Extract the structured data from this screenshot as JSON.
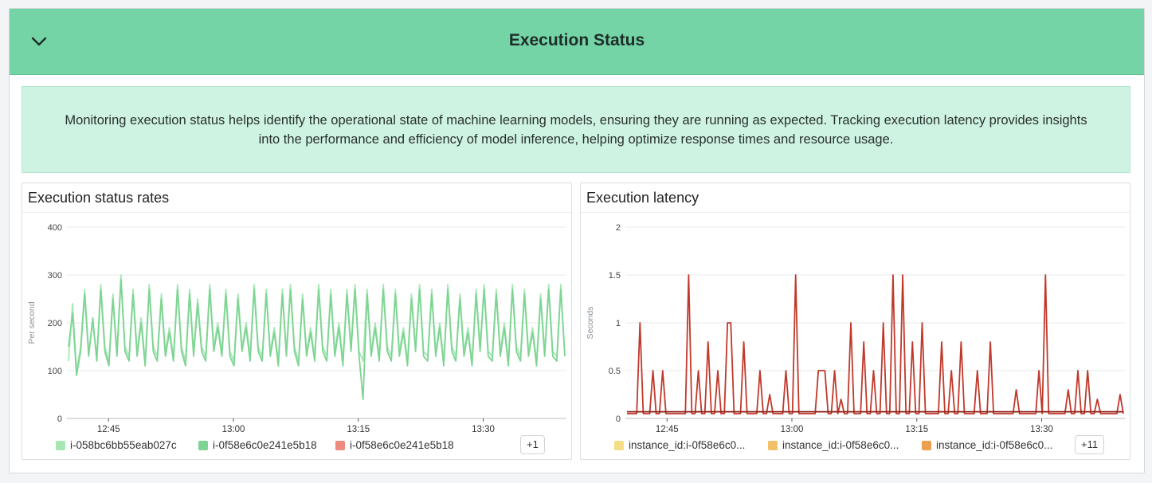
{
  "header": {
    "title": "Execution Status",
    "toggle_icon": "chevron-down-icon"
  },
  "description": "Monitoring execution status helps identify the operational state of machine learning models, ensuring they are running as expected. Tracking execution latency provides insights into the performance and efficiency of model inference, helping optimize response times and resource usage.",
  "widgets": [
    {
      "title": "Execution status rates",
      "legend": [
        {
          "label": "i-058bc6bb55eab027c",
          "color": "#a5e8b6"
        },
        {
          "label": "i-0f58e6c0e241e5b18",
          "color": "#7ed492"
        },
        {
          "label": "i-0f58e6c0e241e5b18",
          "color": "#ee8a7e"
        }
      ],
      "more": "+1"
    },
    {
      "title": "Execution latency",
      "legend": [
        {
          "label": "instance_id:i-0f58e6c0...",
          "color": "#f5dd85"
        },
        {
          "label": "instance_id:i-0f58e6c0...",
          "color": "#f2c066"
        },
        {
          "label": "instance_id:i-0f58e6c0...",
          "color": "#eaa04e"
        }
      ],
      "more": "+11"
    }
  ],
  "chart_data": [
    {
      "type": "line",
      "title": "Execution status rates",
      "ylabel": "Per second",
      "ylim": [
        0,
        400
      ],
      "yticks": [
        "0",
        "100",
        "200",
        "300",
        "400"
      ],
      "xticks": [
        "12:45",
        "13:00",
        "13:15",
        "13:30"
      ],
      "xrange_minutes": [
        40,
        100
      ],
      "xtick_minutes": [
        45,
        60,
        75,
        90
      ],
      "grid": true,
      "series": [
        {
          "color": "#a5e8b6",
          "values": [
            120,
            240,
            100,
            150,
            270,
            140,
            200,
            130,
            280,
            150,
            120,
            260,
            140,
            300,
            150,
            130,
            270,
            140,
            210,
            120,
            280,
            150,
            130,
            260,
            140,
            190,
            130,
            280,
            150,
            120,
            270,
            140,
            250,
            150,
            130,
            280,
            150,
            200,
            140,
            270,
            140,
            120,
            260,
            150,
            200,
            130,
            280,
            150,
            130,
            270,
            140,
            190,
            120,
            270,
            140,
            280,
            150,
            120,
            260,
            140,
            190,
            130,
            280,
            150,
            130,
            270,
            140,
            200,
            120,
            270,
            150,
            280,
            140,
            120,
            270,
            140,
            200,
            130,
            280,
            150,
            130,
            270,
            140,
            190,
            120,
            260,
            150,
            280,
            140,
            130,
            270,
            140,
            200,
            120,
            280,
            150,
            130,
            260,
            140,
            190,
            120,
            270,
            150,
            280,
            140,
            130,
            270,
            140,
            200,
            120,
            280,
            150,
            130,
            270,
            140,
            190,
            120,
            260,
            140,
            280,
            140,
            130,
            280,
            130
          ]
        },
        {
          "color": "#7ed492",
          "values": [
            150,
            220,
            90,
            140,
            260,
            130,
            210,
            120,
            270,
            140,
            110,
            250,
            130,
            290,
            140,
            120,
            260,
            130,
            200,
            110,
            270,
            140,
            120,
            250,
            130,
            180,
            120,
            270,
            140,
            110,
            260,
            130,
            240,
            140,
            120,
            270,
            140,
            190,
            130,
            260,
            130,
            110,
            250,
            140,
            190,
            120,
            270,
            140,
            120,
            260,
            130,
            180,
            110,
            260,
            130,
            270,
            140,
            110,
            250,
            130,
            180,
            120,
            270,
            140,
            120,
            260,
            130,
            190,
            110,
            260,
            140,
            270,
            130,
            40,
            260,
            130,
            190,
            120,
            270,
            140,
            120,
            260,
            130,
            180,
            110,
            250,
            140,
            270,
            130,
            120,
            260,
            130,
            190,
            110,
            270,
            140,
            120,
            250,
            130,
            180,
            110,
            260,
            140,
            270,
            130,
            120,
            260,
            130,
            190,
            110,
            270,
            140,
            120,
            260,
            130,
            180,
            110,
            250,
            130,
            270,
            130,
            120,
            270,
            130
          ]
        },
        {
          "color": "#ee8a7e",
          "values": []
        }
      ]
    },
    {
      "type": "line",
      "title": "Execution latency",
      "ylabel": "Seconds",
      "ylim": [
        0,
        2
      ],
      "yticks": [
        "0",
        "0.5",
        "1",
        "1.5",
        "2"
      ],
      "xticks": [
        "12:45",
        "13:00",
        "13:15",
        "13:30"
      ],
      "xrange_minutes": [
        40,
        100
      ],
      "xtick_minutes": [
        45,
        60,
        75,
        90
      ],
      "grid": true,
      "series": [
        {
          "color": "#c0392b",
          "values": [
            0.05,
            0.05,
            0.05,
            0.05,
            1.0,
            0.05,
            0.05,
            0.05,
            0.5,
            0.05,
            0.05,
            0.5,
            0.05,
            0.05,
            0.05,
            0.05,
            0.05,
            0.05,
            0.05,
            1.5,
            0.05,
            0.05,
            0.5,
            0.05,
            0.05,
            0.8,
            0.05,
            0.05,
            0.5,
            0.05,
            0.05,
            1.0,
            1.0,
            0.05,
            0.05,
            0.05,
            0.8,
            0.05,
            0.05,
            0.05,
            0.05,
            0.5,
            0.05,
            0.05,
            0.25,
            0.05,
            0.05,
            0.05,
            0.05,
            0.5,
            0.05,
            0.05,
            1.5,
            0.05,
            0.05,
            0.05,
            0.05,
            0.05,
            0.05,
            0.5,
            0.5,
            0.5,
            0.05,
            0.05,
            0.5,
            0.05,
            0.2,
            0.05,
            0.05,
            1.0,
            0.05,
            0.05,
            0.05,
            0.8,
            0.05,
            0.05,
            0.5,
            0.05,
            0.05,
            1.0,
            0.05,
            0.05,
            1.5,
            0.05,
            0.05,
            1.5,
            0.05,
            0.05,
            0.8,
            0.05,
            0.05,
            1.0,
            0.05,
            0.05,
            0.05,
            0.05,
            0.05,
            0.8,
            0.05,
            0.05,
            0.5,
            0.05,
            0.05,
            0.8,
            0.05,
            0.05,
            0.05,
            0.05,
            0.5,
            0.05,
            0.05,
            0.05,
            0.8,
            0.05,
            0.05,
            0.05,
            0.05,
            0.05,
            0.05,
            0.05,
            0.3,
            0.05,
            0.05,
            0.05,
            0.05,
            0.05,
            0.05,
            0.5,
            0.05,
            1.5,
            0.05,
            0.05,
            0.05,
            0.05,
            0.05,
            0.05,
            0.3,
            0.05,
            0.05,
            0.5,
            0.05,
            0.05,
            0.5,
            0.05,
            0.05,
            0.2,
            0.05,
            0.05,
            0.05,
            0.05,
            0.05,
            0.05,
            0.25,
            0.05
          ]
        },
        {
          "color": "#8e1e14",
          "values": [
            0.07,
            0.07,
            0.07,
            0.07,
            0.07,
            0.07,
            0.07,
            0.07,
            0.07,
            0.07,
            0.07,
            0.07,
            0.07,
            0.07,
            0.07,
            0.07,
            0.07,
            0.07,
            0.07,
            0.07,
            0.07,
            0.07,
            0.07,
            0.07,
            0.07,
            0.07,
            0.07,
            0.07,
            0.07,
            0.07,
            0.07,
            0.07,
            0.07,
            0.07,
            0.07,
            0.07,
            0.07,
            0.07,
            0.07,
            0.07,
            0.07,
            0.07,
            0.07,
            0.07,
            0.07,
            0.07,
            0.07,
            0.07,
            0.07,
            0.07
          ]
        }
      ]
    }
  ]
}
